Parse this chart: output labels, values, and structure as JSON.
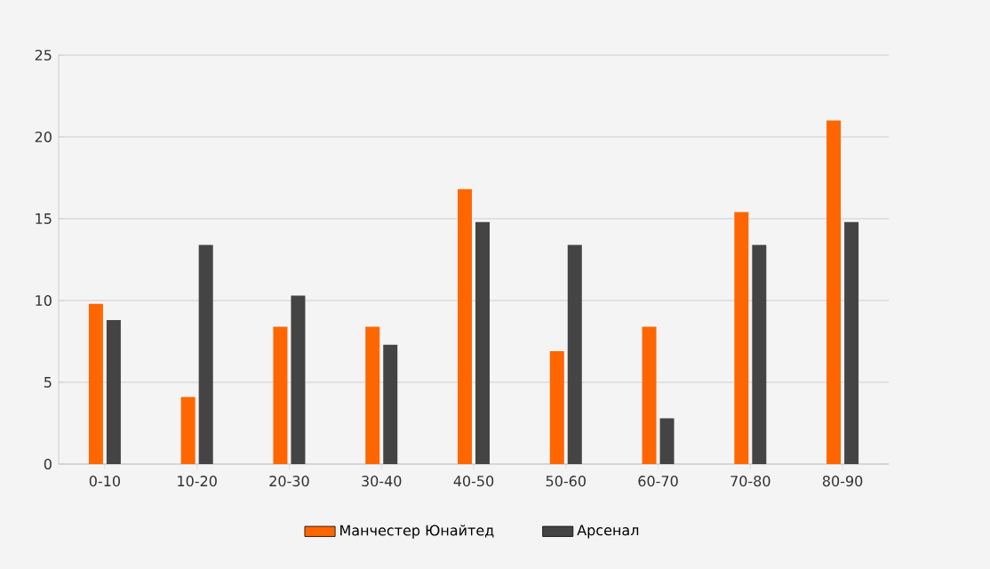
{
  "chart_data": {
    "type": "bar",
    "categories": [
      "0-10",
      "10-20",
      "20-30",
      "30-40",
      "40-50",
      "50-60",
      "60-70",
      "70-80",
      "80-90"
    ],
    "series": [
      {
        "name": "Манчестер Юнайтед",
        "color": "#ff6600",
        "values": [
          9.8,
          4.1,
          8.4,
          8.4,
          16.8,
          6.9,
          8.4,
          15.4,
          21.0
        ]
      },
      {
        "name": "Арсенал",
        "color": "#444444",
        "values": [
          8.8,
          13.4,
          10.3,
          7.3,
          14.8,
          13.4,
          2.8,
          13.4,
          14.8
        ]
      }
    ],
    "ylim": [
      0,
      25
    ],
    "yticks": [
      0,
      5,
      10,
      15,
      20,
      25
    ],
    "grid": "y",
    "legend": "bottom"
  }
}
